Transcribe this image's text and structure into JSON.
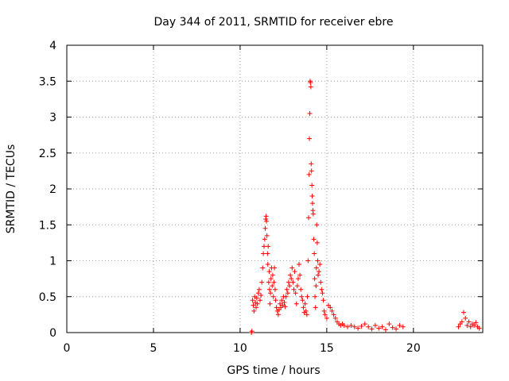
{
  "chart_data": {
    "type": "scatter",
    "title": "Day 344 of 2011, SRMTID for receiver ebre",
    "xlabel": "GPS time / hours",
    "ylabel": "SRMTID / TECUs",
    "xlim": [
      0,
      24
    ],
    "ylim": [
      0,
      4
    ],
    "x_ticks": [
      0,
      5,
      10,
      15,
      20
    ],
    "x_tick_labels": [
      "0",
      "5",
      "10",
      "15",
      "20"
    ],
    "y_ticks": [
      0,
      0.5,
      1,
      1.5,
      2,
      2.5,
      3,
      3.5,
      4
    ],
    "y_tick_labels": [
      "0",
      "0.5",
      "1",
      "1.5",
      "2",
      "2.5",
      "3",
      "3.5",
      "4"
    ],
    "grid": true,
    "marker": "+",
    "color": "#ff0000",
    "series": [
      {
        "name": "SRMTID",
        "points": [
          [
            10.65,
            0.0
          ],
          [
            10.68,
            0.02
          ],
          [
            10.72,
            0.45
          ],
          [
            10.76,
            0.38
          ],
          [
            10.8,
            0.3
          ],
          [
            10.84,
            0.5
          ],
          [
            10.88,
            0.42
          ],
          [
            10.92,
            0.35
          ],
          [
            10.96,
            0.48
          ],
          [
            11.0,
            0.4
          ],
          [
            11.05,
            0.55
          ],
          [
            11.1,
            0.6
          ],
          [
            11.15,
            0.45
          ],
          [
            11.2,
            0.52
          ],
          [
            11.25,
            0.7
          ],
          [
            11.3,
            0.9
          ],
          [
            11.34,
            1.1
          ],
          [
            11.38,
            1.2
          ],
          [
            11.42,
            1.3
          ],
          [
            11.45,
            1.45
          ],
          [
            11.48,
            1.58
          ],
          [
            11.5,
            1.62
          ],
          [
            11.52,
            1.55
          ],
          [
            11.55,
            1.35
          ],
          [
            11.58,
            1.1
          ],
          [
            11.6,
            0.95
          ],
          [
            11.62,
            1.2
          ],
          [
            11.65,
            0.7
          ],
          [
            11.68,
            0.85
          ],
          [
            11.7,
            0.6
          ],
          [
            11.72,
            0.4
          ],
          [
            11.75,
            0.55
          ],
          [
            11.78,
            0.75
          ],
          [
            11.82,
            0.9
          ],
          [
            11.85,
            0.65
          ],
          [
            11.88,
            0.8
          ],
          [
            11.92,
            0.5
          ],
          [
            11.95,
            0.7
          ],
          [
            11.98,
            0.9
          ],
          [
            12.02,
            0.6
          ],
          [
            12.05,
            0.45
          ],
          [
            12.1,
            0.35
          ],
          [
            12.15,
            0.3
          ],
          [
            12.2,
            0.25
          ],
          [
            12.25,
            0.32
          ],
          [
            12.3,
            0.4
          ],
          [
            12.35,
            0.35
          ],
          [
            12.4,
            0.45
          ],
          [
            12.45,
            0.38
          ],
          [
            12.5,
            0.5
          ],
          [
            12.55,
            0.42
          ],
          [
            12.6,
            0.36
          ],
          [
            12.65,
            0.5
          ],
          [
            12.7,
            0.6
          ],
          [
            12.75,
            0.55
          ],
          [
            12.8,
            0.7
          ],
          [
            12.85,
            0.65
          ],
          [
            12.9,
            0.8
          ],
          [
            12.95,
            0.75
          ],
          [
            13.0,
            0.9
          ],
          [
            13.05,
            0.7
          ],
          [
            13.1,
            0.6
          ],
          [
            13.15,
            0.85
          ],
          [
            13.2,
            0.55
          ],
          [
            13.25,
            0.4
          ],
          [
            13.3,
            0.65
          ],
          [
            13.35,
            0.75
          ],
          [
            13.4,
            0.95
          ],
          [
            13.45,
            0.8
          ],
          [
            13.5,
            0.6
          ],
          [
            13.55,
            0.5
          ],
          [
            13.6,
            0.45
          ],
          [
            13.65,
            0.35
          ],
          [
            13.7,
            0.28
          ],
          [
            13.75,
            0.4
          ],
          [
            13.8,
            0.3
          ],
          [
            13.85,
            0.25
          ],
          [
            13.88,
            0.5
          ],
          [
            13.92,
            1.0
          ],
          [
            13.95,
            1.6
          ],
          [
            13.98,
            2.2
          ],
          [
            14.0,
            2.7
          ],
          [
            14.02,
            3.05
          ],
          [
            14.04,
            3.5
          ],
          [
            14.06,
            3.48
          ],
          [
            14.08,
            3.42
          ],
          [
            14.1,
            2.35
          ],
          [
            14.12,
            2.25
          ],
          [
            14.14,
            2.05
          ],
          [
            14.16,
            1.9
          ],
          [
            14.18,
            1.8
          ],
          [
            14.2,
            1.7
          ],
          [
            14.22,
            1.65
          ],
          [
            14.25,
            1.3
          ],
          [
            14.28,
            1.1
          ],
          [
            14.3,
            0.75
          ],
          [
            14.32,
            0.5
          ],
          [
            14.35,
            0.35
          ],
          [
            14.38,
            0.65
          ],
          [
            14.4,
            0.9
          ],
          [
            14.42,
            1.5
          ],
          [
            14.45,
            1.25
          ],
          [
            14.48,
            1.0
          ],
          [
            14.5,
            0.8
          ],
          [
            14.55,
            0.85
          ],
          [
            14.6,
            0.95
          ],
          [
            14.65,
            0.7
          ],
          [
            14.7,
            0.6
          ],
          [
            14.75,
            0.55
          ],
          [
            14.8,
            0.45
          ],
          [
            14.85,
            0.3
          ],
          [
            14.9,
            0.25
          ],
          [
            15.0,
            0.2
          ],
          [
            15.1,
            0.38
          ],
          [
            15.2,
            0.35
          ],
          [
            15.3,
            0.3
          ],
          [
            15.4,
            0.25
          ],
          [
            15.5,
            0.2
          ],
          [
            15.6,
            0.15
          ],
          [
            15.7,
            0.12
          ],
          [
            15.8,
            0.1
          ],
          [
            15.9,
            0.12
          ],
          [
            16.0,
            0.1
          ],
          [
            16.2,
            0.08
          ],
          [
            16.4,
            0.1
          ],
          [
            16.6,
            0.08
          ],
          [
            16.8,
            0.06
          ],
          [
            17.0,
            0.09
          ],
          [
            17.2,
            0.12
          ],
          [
            17.4,
            0.08
          ],
          [
            17.6,
            0.05
          ],
          [
            17.8,
            0.1
          ],
          [
            18.0,
            0.06
          ],
          [
            18.2,
            0.08
          ],
          [
            18.4,
            0.04
          ],
          [
            18.6,
            0.12
          ],
          [
            18.8,
            0.07
          ],
          [
            19.0,
            0.05
          ],
          [
            19.2,
            0.1
          ],
          [
            19.4,
            0.08
          ],
          [
            22.6,
            0.08
          ],
          [
            22.7,
            0.12
          ],
          [
            22.8,
            0.15
          ],
          [
            22.9,
            0.28
          ],
          [
            23.0,
            0.2
          ],
          [
            23.1,
            0.1
          ],
          [
            23.2,
            0.15
          ],
          [
            23.3,
            0.08
          ],
          [
            23.4,
            0.12
          ],
          [
            23.5,
            0.1
          ],
          [
            23.6,
            0.14
          ],
          [
            23.7,
            0.08
          ],
          [
            23.8,
            0.06
          ]
        ]
      }
    ]
  }
}
